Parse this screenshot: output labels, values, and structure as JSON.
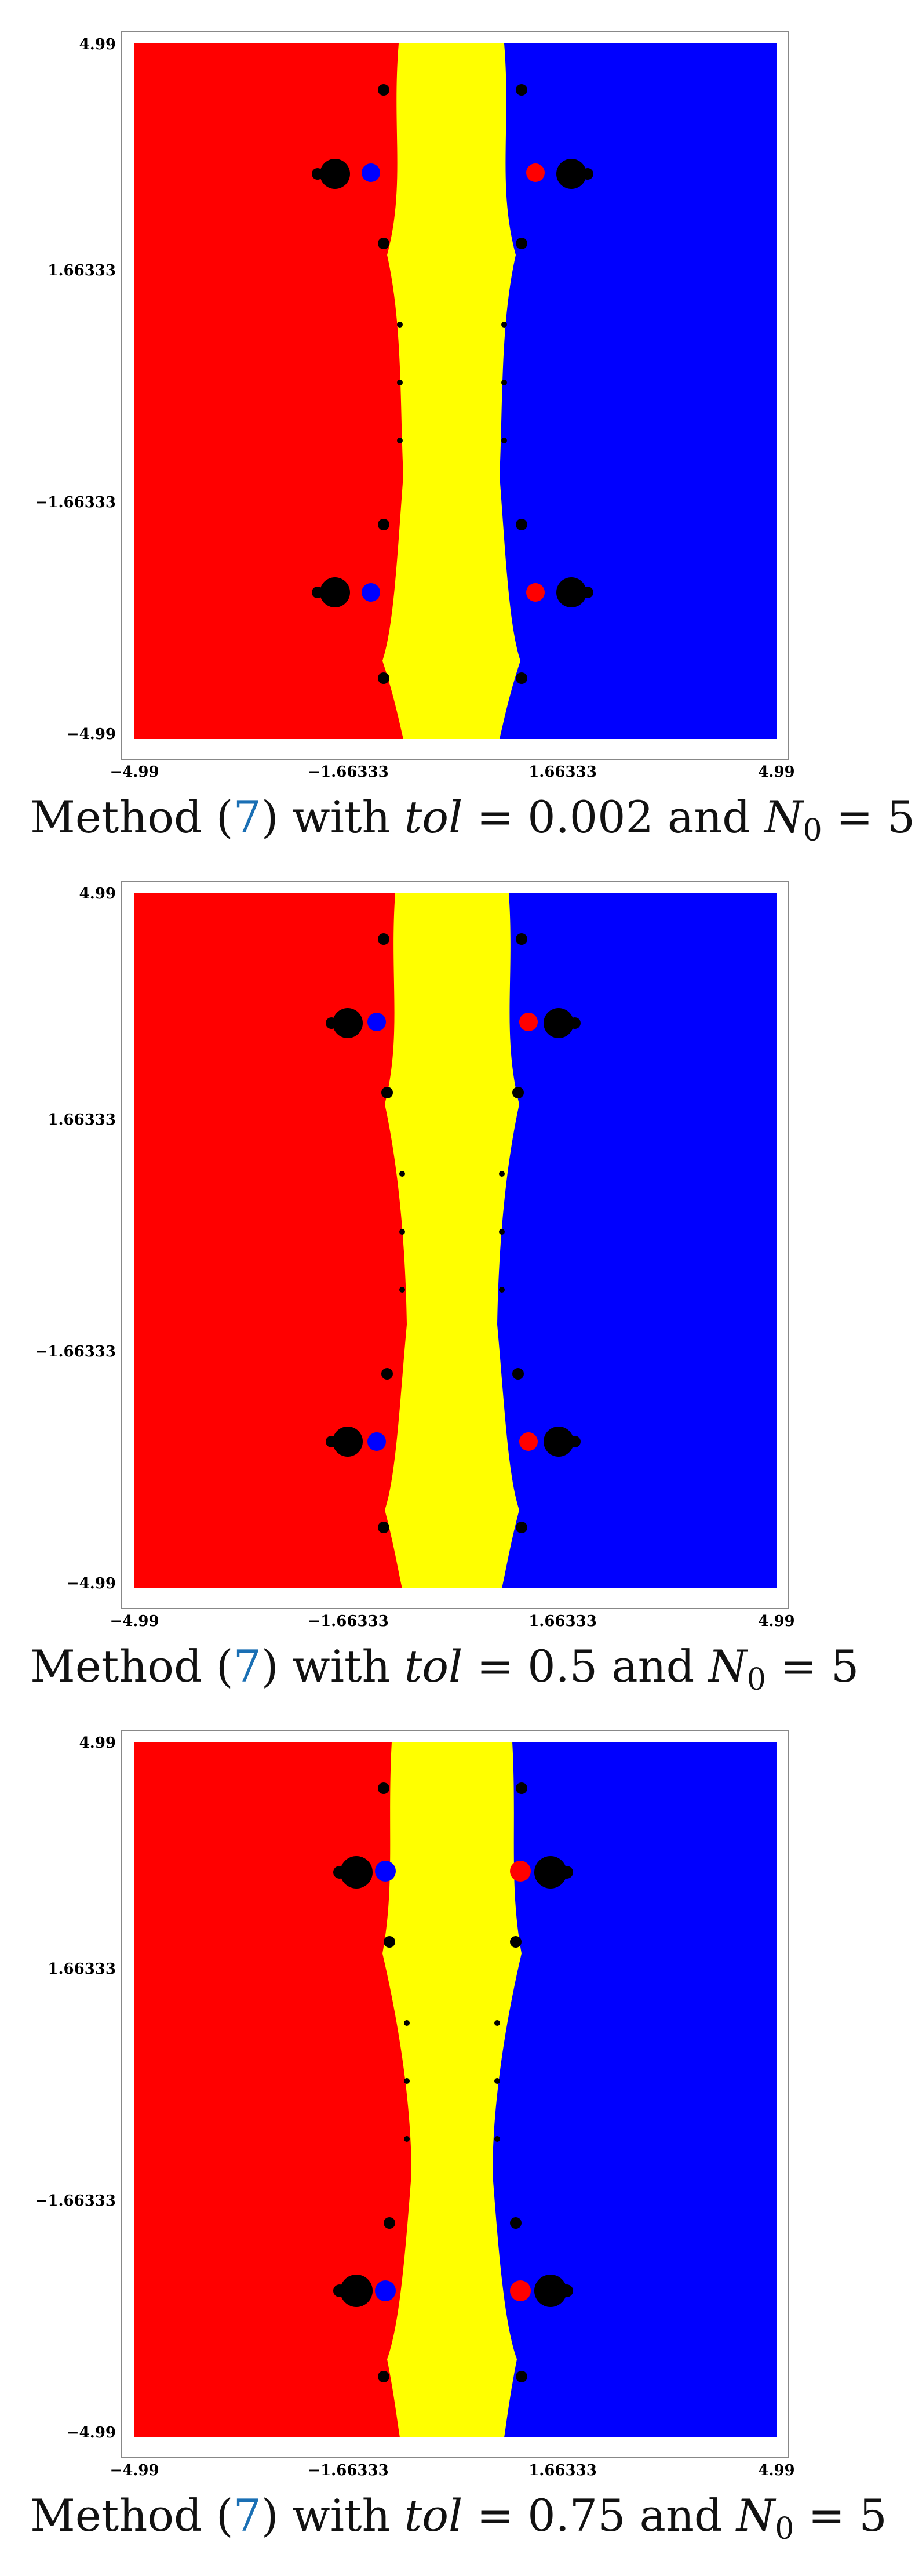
{
  "figure": {
    "panels": [
      {
        "caption": {
          "prefix": "Method (",
          "ref": "7",
          "mid": ") with ",
          "tol_symbol": "tol",
          "eq1": " = ",
          "tol_value": "0.002",
          "and": " and ",
          "n_symbol": "N",
          "n_sub": "0",
          "eq2": " = ",
          "n_value": "5"
        }
      },
      {
        "caption": {
          "prefix": "Method (",
          "ref": "7",
          "mid": ") with ",
          "tol_symbol": "tol",
          "eq1": " = ",
          "tol_value": "0.5",
          "and": " and ",
          "n_symbol": "N",
          "n_sub": "0",
          "eq2": " = ",
          "n_value": "5"
        }
      },
      {
        "caption": {
          "prefix": "Method (",
          "ref": "7",
          "mid": ") with ",
          "tol_symbol": "tol",
          "eq1": " = ",
          "tol_value": "0.75",
          "and": " and ",
          "n_symbol": "N",
          "n_sub": "0",
          "eq2": " = ",
          "n_value": "5"
        }
      }
    ],
    "axes": {
      "x_ticks": [
        "−4.99",
        "−1.66333",
        "1.66333",
        "4.99"
      ],
      "y_ticks": [
        "4.99",
        "1.66333",
        "−1.66333",
        "−4.99"
      ]
    },
    "colors": {
      "basin_left": "#ff0000",
      "basin_center": "#ffff00",
      "basin_right": "#0000ff",
      "divergent": "#000000",
      "reference_link": "#1a6fb4"
    }
  }
}
